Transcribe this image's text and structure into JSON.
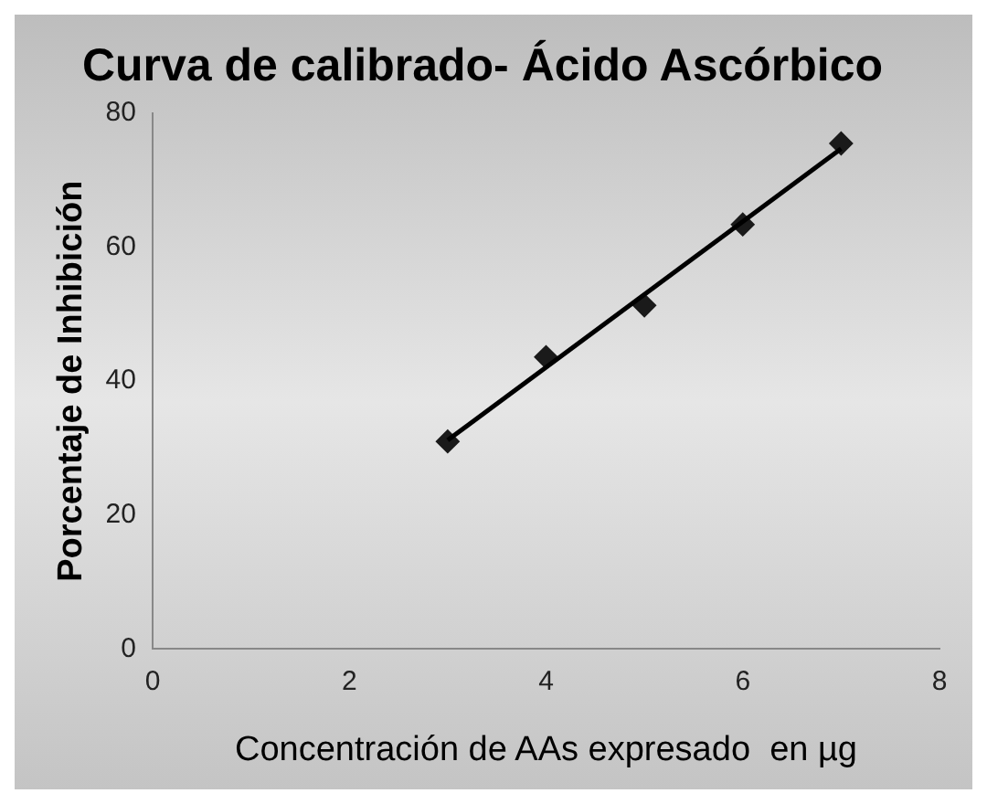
{
  "chart_data": {
    "type": "scatter",
    "title": "Curva de calibrado- Ácido Ascórbico",
    "xlabel": "Concentración de AAs expresado  en µg",
    "ylabel": "Porcentaje de Inhibición",
    "x": [
      3,
      4,
      5,
      6,
      7
    ],
    "series": [
      {
        "type": "scatter",
        "color": "#1a1a1a",
        "values": [
          31.0,
          43.6,
          51.3,
          63.4,
          75.5
        ],
        "marker": "diamond"
      },
      {
        "type": "line",
        "color": "#000000",
        "x": [
          3,
          7
        ],
        "values": [
          31.2,
          74.7
        ],
        "marker": "none"
      }
    ],
    "xlim": [
      0,
      8
    ],
    "xticks": [
      0,
      2,
      4,
      6,
      8
    ],
    "ylim": [
      0,
      80
    ],
    "yticks": [
      0,
      20,
      40,
      60,
      80
    ],
    "grid": false,
    "legend": false
  }
}
